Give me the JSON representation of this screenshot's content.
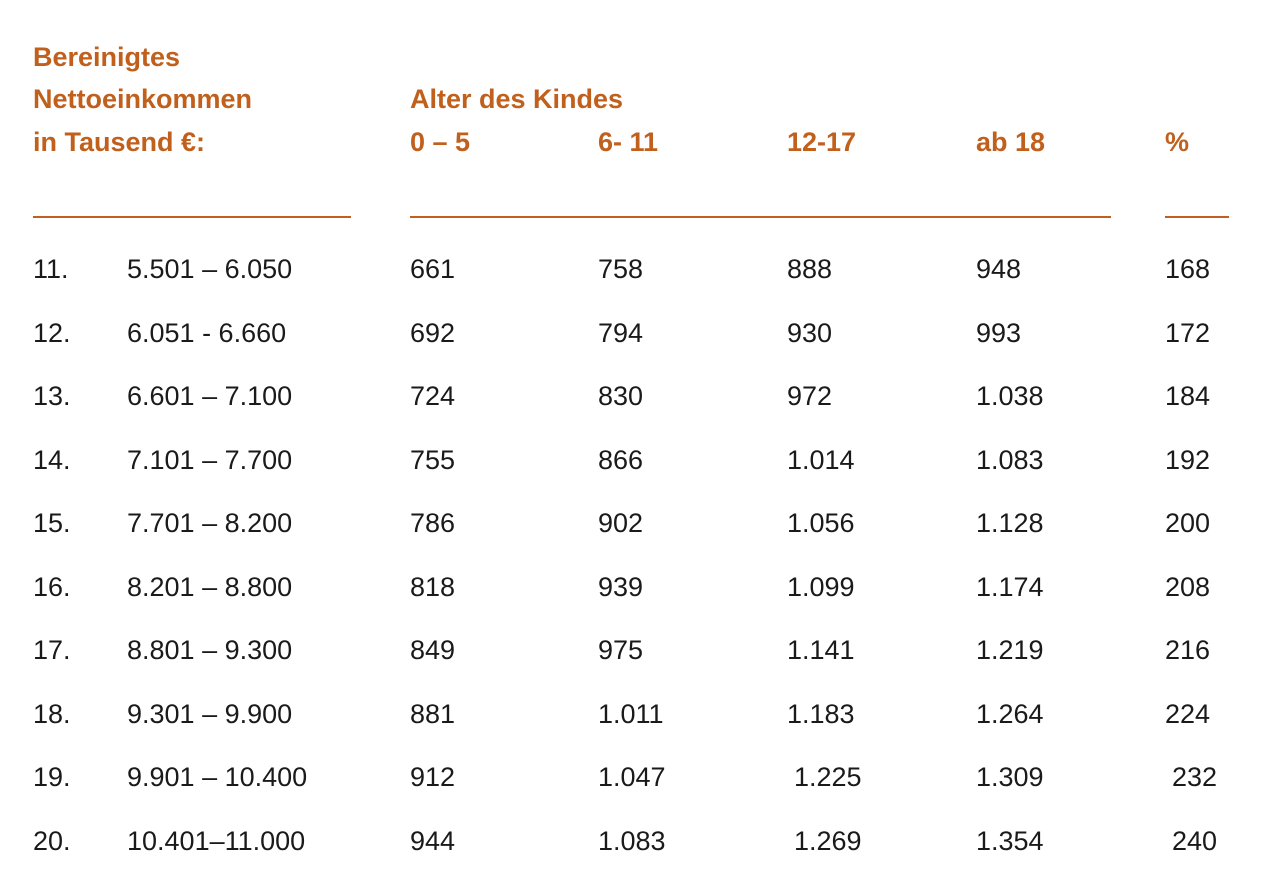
{
  "header": {
    "left_lines": [
      "Bereinigtes",
      "Nettoeinkommen",
      "in Tausend €:"
    ],
    "age_group_title": "Alter des Kindes",
    "age_columns": [
      "0 – 5",
      "6- 11",
      "12-17",
      "ab 18"
    ],
    "percent_column": "%"
  },
  "rows": [
    {
      "num": "11.",
      "range": "5.501 – 6.050",
      "values": [
        "661",
        "758",
        "888",
        "948"
      ],
      "pct": "168"
    },
    {
      "num": "12.",
      "range": "6.051 - 6.660",
      "values": [
        "692",
        "794",
        "930",
        "993"
      ],
      "pct": "172"
    },
    {
      "num": "13.",
      "range": "6.601 – 7.100",
      "values": [
        "724",
        "830",
        "972",
        "1.038"
      ],
      "pct": "184"
    },
    {
      "num": "14.",
      "range": "7.101 – 7.700",
      "values": [
        "755",
        "866",
        "1.014",
        "1.083"
      ],
      "pct": "192"
    },
    {
      "num": "15.",
      "range": "7.701 – 8.200",
      "values": [
        "786",
        "902",
        "1.056",
        "1.128"
      ],
      "pct": "200"
    },
    {
      "num": "16.",
      "range": "8.201 – 8.800",
      "values": [
        "818",
        "939",
        "1.099",
        "1.174"
      ],
      "pct": "208"
    },
    {
      "num": "17.",
      "range": "8.801 – 9.300",
      "values": [
        "849",
        "975",
        "1.141",
        "1.219"
      ],
      "pct": "216"
    },
    {
      "num": "18.",
      "range": "9.301 – 9.900",
      "values": [
        "881",
        "1.011",
        "1.183",
        "1.264"
      ],
      "pct": "224"
    },
    {
      "num": "19.",
      "range": "9.901 – 10.400",
      "values": [
        "912",
        "1.047",
        "1.225",
        "1.309"
      ],
      "pct": "232"
    },
    {
      "num": "20.",
      "range": "10.401–11.000",
      "values": [
        "944",
        "1.083",
        "1.269",
        "1.354"
      ],
      "pct": "240"
    }
  ]
}
